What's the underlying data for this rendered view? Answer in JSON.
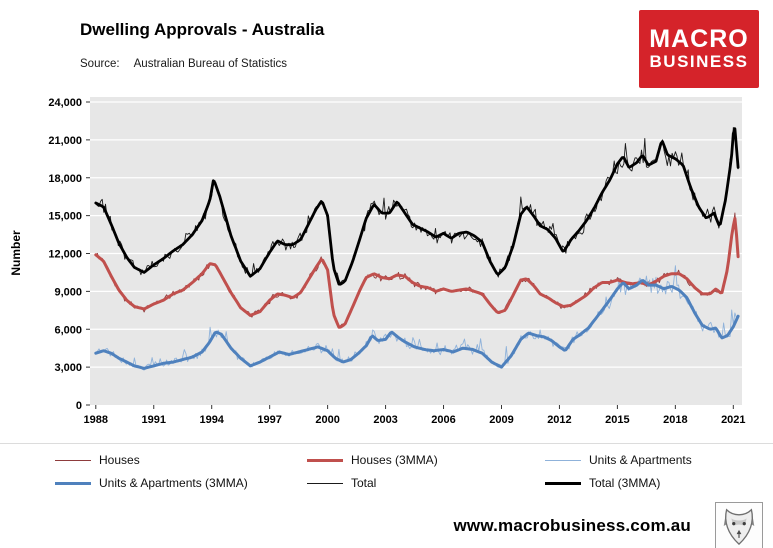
{
  "header": {
    "title": "Dwelling Approvals - Australia",
    "source_label": "Source:",
    "source_value": "Australian Bureau of Statistics",
    "logo_line1": "MACRO",
    "logo_line2": "BUSINESS",
    "logo_bg": "#d5232a"
  },
  "footer": {
    "website": "www.macrobusiness.com.au",
    "logo_icon": "wolf-logo"
  },
  "chart_data": {
    "type": "line",
    "title": "Dwelling Approvals - Australia",
    "xlabel": "",
    "ylabel": "Number",
    "ylim": [
      0,
      24000
    ],
    "xlim": [
      1987.7,
      2021.45
    ],
    "y_ticks": [
      0,
      3000,
      6000,
      9000,
      12000,
      15000,
      18000,
      21000,
      24000
    ],
    "x_ticks": [
      1988,
      1991,
      1994,
      1997,
      2000,
      2003,
      2006,
      2009,
      2012,
      2015,
      2018,
      2021
    ],
    "grid": "horizontal-white",
    "plot_bg": "#e7e7e7",
    "grid_color": "#ffffff",
    "legend_position": "bottom",
    "noise_seed": 42,
    "series": [
      {
        "name": "Houses",
        "base": "houses",
        "style": "thin",
        "color": "#8e3b3c",
        "width": 0.9,
        "noise_frac": 0.035,
        "spike_prob": 0,
        "spike_scale": 0,
        "z": 1
      },
      {
        "name": "Houses (3MMA)",
        "base": "houses",
        "style": "thick",
        "color": "#c0504d",
        "width": 3,
        "z": 4
      },
      {
        "name": "Units & Apartments",
        "base": "units",
        "style": "thin",
        "color": "#8fb2da",
        "width": 0.9,
        "noise_frac": 0.1,
        "spike_prob": 0.07,
        "spike_scale": 2.6,
        "z": 2
      },
      {
        "name": "Units & Apartments (3MMA)",
        "base": "units",
        "style": "thick",
        "color": "#4f81bd",
        "width": 3,
        "z": 5
      },
      {
        "name": "Total",
        "base": "total",
        "style": "thin",
        "color": "#1a1a1a",
        "width": 0.9,
        "noise_frac": 0.05,
        "spike_prob": 0.05,
        "spike_scale": 1.7,
        "z": 3
      },
      {
        "name": "Total (3MMA)",
        "base": "total",
        "style": "thick",
        "color": "#000000",
        "width": 2.8,
        "z": 6
      }
    ],
    "base_points": {
      "houses": [
        [
          1988.0,
          11900
        ],
        [
          1988.4,
          11400
        ],
        [
          1988.8,
          10200
        ],
        [
          1989.2,
          9100
        ],
        [
          1989.6,
          8300
        ],
        [
          1990.0,
          7800
        ],
        [
          1990.5,
          7600
        ],
        [
          1991.0,
          8000
        ],
        [
          1991.5,
          8300
        ],
        [
          1992.0,
          8800
        ],
        [
          1992.5,
          9100
        ],
        [
          1993.0,
          9700
        ],
        [
          1993.5,
          10400
        ],
        [
          1993.9,
          11200
        ],
        [
          1994.2,
          11100
        ],
        [
          1994.6,
          10000
        ],
        [
          1995.0,
          8900
        ],
        [
          1995.5,
          7700
        ],
        [
          1996.0,
          7100
        ],
        [
          1996.5,
          7400
        ],
        [
          1997.0,
          8300
        ],
        [
          1997.4,
          8800
        ],
        [
          1997.8,
          8700
        ],
        [
          1998.2,
          8500
        ],
        [
          1998.6,
          8900
        ],
        [
          1999.0,
          9900
        ],
        [
          1999.4,
          10900
        ],
        [
          1999.7,
          11600
        ],
        [
          2000.0,
          10700
        ],
        [
          2000.3,
          7200
        ],
        [
          2000.6,
          6100
        ],
        [
          2000.9,
          6400
        ],
        [
          2001.3,
          7800
        ],
        [
          2001.7,
          9200
        ],
        [
          2002.0,
          10100
        ],
        [
          2002.4,
          10400
        ],
        [
          2002.8,
          10100
        ],
        [
          2003.2,
          10000
        ],
        [
          2003.6,
          10300
        ],
        [
          2004.0,
          10200
        ],
        [
          2004.4,
          9700
        ],
        [
          2004.8,
          9400
        ],
        [
          2005.2,
          9300
        ],
        [
          2005.6,
          9000
        ],
        [
          2006.0,
          9200
        ],
        [
          2006.4,
          9000
        ],
        [
          2006.8,
          9100
        ],
        [
          2007.2,
          9200
        ],
        [
          2007.6,
          9000
        ],
        [
          2008.0,
          8800
        ],
        [
          2008.4,
          8000
        ],
        [
          2008.8,
          7300
        ],
        [
          2009.2,
          7500
        ],
        [
          2009.6,
          8700
        ],
        [
          2010.0,
          9900
        ],
        [
          2010.3,
          10000
        ],
        [
          2010.7,
          9400
        ],
        [
          2011.0,
          8800
        ],
        [
          2011.4,
          8500
        ],
        [
          2011.8,
          8100
        ],
        [
          2012.2,
          7800
        ],
        [
          2012.6,
          7900
        ],
        [
          2013.0,
          8300
        ],
        [
          2013.4,
          8700
        ],
        [
          2013.8,
          9300
        ],
        [
          2014.2,
          9700
        ],
        [
          2014.6,
          9700
        ],
        [
          2015.0,
          9900
        ],
        [
          2015.4,
          9700
        ],
        [
          2015.8,
          9600
        ],
        [
          2016.2,
          9700
        ],
        [
          2016.6,
          9500
        ],
        [
          2017.0,
          9800
        ],
        [
          2017.4,
          10200
        ],
        [
          2017.8,
          10400
        ],
        [
          2018.2,
          10400
        ],
        [
          2018.6,
          10000
        ],
        [
          2019.0,
          9300
        ],
        [
          2019.4,
          8800
        ],
        [
          2019.8,
          8800
        ],
        [
          2020.1,
          9200
        ],
        [
          2020.4,
          8800
        ],
        [
          2020.7,
          10800
        ],
        [
          2020.95,
          13800
        ],
        [
          2021.1,
          14900
        ],
        [
          2021.3,
          10700
        ]
      ],
      "units": [
        [
          1988.0,
          4100
        ],
        [
          1988.4,
          4300
        ],
        [
          1988.8,
          4100
        ],
        [
          1989.2,
          3700
        ],
        [
          1989.6,
          3400
        ],
        [
          1990.0,
          3100
        ],
        [
          1990.5,
          2900
        ],
        [
          1991.0,
          3100
        ],
        [
          1991.5,
          3300
        ],
        [
          1992.0,
          3400
        ],
        [
          1992.5,
          3600
        ],
        [
          1993.0,
          3800
        ],
        [
          1993.5,
          4200
        ],
        [
          1993.9,
          5000
        ],
        [
          1994.2,
          5800
        ],
        [
          1994.5,
          5600
        ],
        [
          1995.0,
          4500
        ],
        [
          1995.5,
          3700
        ],
        [
          1996.0,
          3100
        ],
        [
          1996.5,
          3400
        ],
        [
          1997.0,
          3800
        ],
        [
          1997.5,
          4200
        ],
        [
          1998.0,
          4000
        ],
        [
          1998.5,
          4200
        ],
        [
          1999.0,
          4400
        ],
        [
          1999.5,
          4600
        ],
        [
          2000.0,
          4300
        ],
        [
          2000.4,
          3700
        ],
        [
          2000.8,
          3400
        ],
        [
          2001.2,
          3600
        ],
        [
          2001.6,
          4100
        ],
        [
          2002.0,
          4700
        ],
        [
          2002.3,
          5500
        ],
        [
          2002.6,
          5100
        ],
        [
          2003.0,
          5200
        ],
        [
          2003.3,
          5800
        ],
        [
          2003.7,
          5300
        ],
        [
          2004.0,
          5000
        ],
        [
          2004.5,
          4600
        ],
        [
          2005.0,
          4400
        ],
        [
          2005.5,
          4300
        ],
        [
          2006.0,
          4400
        ],
        [
          2006.5,
          4200
        ],
        [
          2007.0,
          4500
        ],
        [
          2007.5,
          4400
        ],
        [
          2008.0,
          4100
        ],
        [
          2008.5,
          3400
        ],
        [
          2009.0,
          3000
        ],
        [
          2009.5,
          3900
        ],
        [
          2010.0,
          5200
        ],
        [
          2010.4,
          5700
        ],
        [
          2010.8,
          5500
        ],
        [
          2011.2,
          5400
        ],
        [
          2011.6,
          5100
        ],
        [
          2012.0,
          4600
        ],
        [
          2012.3,
          4300
        ],
        [
          2012.7,
          5200
        ],
        [
          2013.0,
          5500
        ],
        [
          2013.5,
          6100
        ],
        [
          2014.0,
          7100
        ],
        [
          2014.5,
          8100
        ],
        [
          2015.0,
          9200
        ],
        [
          2015.3,
          9700
        ],
        [
          2015.6,
          9200
        ],
        [
          2016.0,
          9500
        ],
        [
          2016.3,
          9900
        ],
        [
          2016.6,
          9500
        ],
        [
          2017.0,
          9500
        ],
        [
          2017.4,
          9200
        ],
        [
          2017.8,
          9400
        ],
        [
          2018.2,
          9100
        ],
        [
          2018.6,
          8500
        ],
        [
          2019.0,
          7300
        ],
        [
          2019.4,
          6300
        ],
        [
          2019.8,
          6000
        ],
        [
          2020.1,
          6100
        ],
        [
          2020.4,
          5300
        ],
        [
          2020.7,
          5500
        ],
        [
          2021.0,
          6200
        ],
        [
          2021.3,
          7200
        ]
      ],
      "total": [
        [
          1988.0,
          16000
        ],
        [
          1988.4,
          15700
        ],
        [
          1988.8,
          14300
        ],
        [
          1989.2,
          12800
        ],
        [
          1989.6,
          11700
        ],
        [
          1990.0,
          10900
        ],
        [
          1990.5,
          10500
        ],
        [
          1991.0,
          11100
        ],
        [
          1991.5,
          11600
        ],
        [
          1992.0,
          12200
        ],
        [
          1992.5,
          12700
        ],
        [
          1993.0,
          13500
        ],
        [
          1993.5,
          14600
        ],
        [
          1993.9,
          16200
        ],
        [
          1994.1,
          17900
        ],
        [
          1994.4,
          16600
        ],
        [
          1995.0,
          13400
        ],
        [
          1995.5,
          11400
        ],
        [
          1996.0,
          10200
        ],
        [
          1996.5,
          10800
        ],
        [
          1997.0,
          12100
        ],
        [
          1997.4,
          13000
        ],
        [
          1997.8,
          12700
        ],
        [
          1998.2,
          12700
        ],
        [
          1998.6,
          13100
        ],
        [
          1999.0,
          14300
        ],
        [
          1999.4,
          15500
        ],
        [
          1999.7,
          16200
        ],
        [
          2000.0,
          15000
        ],
        [
          2000.3,
          10900
        ],
        [
          2000.6,
          9500
        ],
        [
          2000.9,
          9800
        ],
        [
          2001.3,
          11400
        ],
        [
          2001.7,
          13300
        ],
        [
          2002.0,
          14800
        ],
        [
          2002.4,
          15900
        ],
        [
          2002.8,
          15200
        ],
        [
          2003.2,
          15200
        ],
        [
          2003.6,
          16100
        ],
        [
          2004.0,
          15200
        ],
        [
          2004.4,
          14300
        ],
        [
          2004.8,
          14000
        ],
        [
          2005.2,
          13700
        ],
        [
          2005.6,
          13300
        ],
        [
          2006.0,
          13600
        ],
        [
          2006.4,
          13200
        ],
        [
          2006.8,
          13600
        ],
        [
          2007.2,
          13700
        ],
        [
          2007.6,
          13400
        ],
        [
          2008.0,
          12900
        ],
        [
          2008.4,
          11400
        ],
        [
          2008.8,
          10300
        ],
        [
          2009.2,
          10900
        ],
        [
          2009.6,
          12600
        ],
        [
          2010.0,
          15100
        ],
        [
          2010.3,
          15700
        ],
        [
          2010.7,
          14900
        ],
        [
          2011.0,
          14200
        ],
        [
          2011.4,
          13900
        ],
        [
          2011.8,
          13200
        ],
        [
          2012.2,
          12100
        ],
        [
          2012.6,
          13100
        ],
        [
          2013.0,
          13800
        ],
        [
          2013.4,
          14600
        ],
        [
          2013.8,
          15600
        ],
        [
          2014.2,
          16800
        ],
        [
          2014.6,
          17800
        ],
        [
          2015.0,
          19100
        ],
        [
          2015.3,
          19700
        ],
        [
          2015.6,
          18800
        ],
        [
          2016.0,
          19200
        ],
        [
          2016.3,
          19800
        ],
        [
          2016.6,
          19000
        ],
        [
          2017.0,
          19300
        ],
        [
          2017.3,
          21000
        ],
        [
          2017.6,
          19800
        ],
        [
          2018.0,
          19500
        ],
        [
          2018.4,
          19000
        ],
        [
          2018.8,
          17200
        ],
        [
          2019.2,
          15700
        ],
        [
          2019.6,
          14800
        ],
        [
          2020.0,
          15200
        ],
        [
          2020.3,
          14100
        ],
        [
          2020.6,
          16300
        ],
        [
          2020.9,
          19500
        ],
        [
          2021.05,
          22500
        ],
        [
          2021.3,
          17900
        ]
      ]
    }
  }
}
